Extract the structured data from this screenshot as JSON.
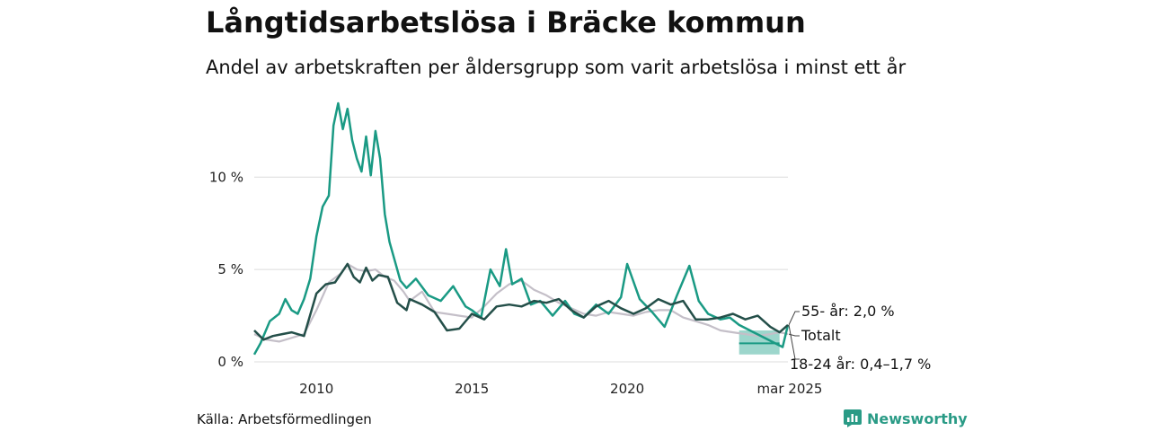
{
  "header": {
    "title": "Långtidsarbetslösa i Bräcke kommun",
    "subtitle": "Andel av arbetskraften per åldersgrupp som varit arbetslösa i minst ett år"
  },
  "footer": {
    "source": "Källa: Arbetsförmedlingen",
    "brand": "Newsworthy",
    "brand_icon": "bar-chart-logo-icon",
    "brand_color": "#2a9b86"
  },
  "chart_data": {
    "type": "line",
    "ylim": [
      0,
      14
    ],
    "y_ticks": [
      {
        "value": 0,
        "label": "0 %"
      },
      {
        "value": 5,
        "label": "5 %"
      },
      {
        "value": 10,
        "label": "10 %"
      }
    ],
    "x_ticks": [
      {
        "value": 2010,
        "label": "2010"
      },
      {
        "value": 2015,
        "label": "2015"
      },
      {
        "value": 2020,
        "label": "2020"
      },
      {
        "value": 2025.17,
        "label": "mar 2025"
      }
    ],
    "grid": true,
    "series": [
      {
        "name": "Totalt",
        "color": "#c4bfc8",
        "x": [
          2008.0,
          2008.4,
          2008.8,
          2009.2,
          2009.6,
          2010.0,
          2010.4,
          2010.8,
          2011.0,
          2011.3,
          2011.6,
          2011.9,
          2012.2,
          2012.5,
          2012.8,
          2013.0,
          2013.4,
          2013.8,
          2014.2,
          2014.6,
          2015.0,
          2015.4,
          2015.8,
          2016.2,
          2016.6,
          2017.0,
          2017.4,
          2017.8,
          2018.2,
          2018.6,
          2019.0,
          2019.4,
          2019.8,
          2020.2,
          2020.6,
          2021.0,
          2021.4,
          2021.8,
          2022.2,
          2022.6,
          2023.0,
          2023.4,
          2023.8,
          2024.2,
          2024.6,
          2024.9,
          2025.17
        ],
        "y": [
          1.5,
          1.2,
          1.1,
          1.3,
          1.5,
          2.8,
          4.3,
          4.8,
          5.3,
          5.0,
          4.9,
          5.0,
          4.6,
          4.4,
          3.8,
          3.3,
          3.8,
          2.7,
          2.6,
          2.5,
          2.4,
          3.0,
          3.7,
          4.2,
          4.4,
          3.9,
          3.6,
          3.2,
          2.9,
          2.6,
          2.5,
          2.7,
          2.6,
          2.5,
          2.7,
          2.8,
          2.8,
          2.4,
          2.2,
          2.0,
          1.7,
          1.6,
          1.5,
          1.4,
          1.5,
          1.6,
          1.5
        ]
      },
      {
        "name": "18-24 år",
        "color": "#1a9a84",
        "x": [
          2008.0,
          2008.2,
          2008.5,
          2008.8,
          2009.0,
          2009.2,
          2009.4,
          2009.6,
          2009.8,
          2010.0,
          2010.2,
          2010.4,
          2010.55,
          2010.7,
          2010.85,
          2011.0,
          2011.15,
          2011.3,
          2011.45,
          2011.6,
          2011.75,
          2011.9,
          2012.05,
          2012.2,
          2012.35,
          2012.5,
          2012.7,
          2012.9,
          2013.2,
          2013.6,
          2014.0,
          2014.4,
          2014.8,
          2015.0,
          2015.3,
          2015.6,
          2015.9,
          2016.1,
          2016.3,
          2016.6,
          2016.9,
          2017.2,
          2017.6,
          2018.0,
          2018.3,
          2018.6,
          2019.0,
          2019.4,
          2019.8,
          2020.0,
          2020.4,
          2020.8,
          2021.2,
          2021.6,
          2022.0,
          2022.3,
          2022.6,
          2023.0,
          2023.3,
          2023.6,
          2024.0,
          2024.5,
          2025.0,
          2025.17
        ],
        "y": [
          0.4,
          1.0,
          2.2,
          2.6,
          3.4,
          2.8,
          2.6,
          3.4,
          4.5,
          6.8,
          8.4,
          9.0,
          12.8,
          14.0,
          12.6,
          13.7,
          12.0,
          11.0,
          10.3,
          12.2,
          10.1,
          12.5,
          11.0,
          8.0,
          6.5,
          5.6,
          4.4,
          4.0,
          4.5,
          3.6,
          3.3,
          4.1,
          3.0,
          2.8,
          2.4,
          5.0,
          4.1,
          6.1,
          4.2,
          4.5,
          3.1,
          3.3,
          2.5,
          3.3,
          2.6,
          2.4,
          3.1,
          2.6,
          3.5,
          5.3,
          3.4,
          2.7,
          1.9,
          3.6,
          5.2,
          3.3,
          2.6,
          2.3,
          2.4,
          2.0,
          1.5,
          0.9,
          0.8,
          2.0
        ],
        "band": {
          "x": [
            2023.6,
            2024.9
          ],
          "low": 0.4,
          "high": 1.7,
          "mid": 1.0,
          "color": "#8ccfc3"
        }
      },
      {
        "name": "55- år",
        "color": "#244f49",
        "x": [
          2008.0,
          2008.3,
          2008.6,
          2008.9,
          2009.2,
          2009.6,
          2010.0,
          2010.3,
          2010.6,
          2011.0,
          2011.2,
          2011.4,
          2011.6,
          2011.8,
          2012.0,
          2012.3,
          2012.6,
          2012.9,
          2013.0,
          2013.4,
          2013.8,
          2014.2,
          2014.6,
          2015.0,
          2015.4,
          2015.8,
          2016.2,
          2016.6,
          2017.0,
          2017.4,
          2017.8,
          2018.2,
          2018.6,
          2019.0,
          2019.4,
          2019.8,
          2020.2,
          2020.6,
          2021.0,
          2021.4,
          2021.8,
          2022.2,
          2022.6,
          2023.0,
          2023.4,
          2023.8,
          2024.2,
          2024.6,
          2024.9,
          2025.17
        ],
        "y": [
          1.7,
          1.2,
          1.4,
          1.5,
          1.6,
          1.4,
          3.7,
          4.2,
          4.3,
          5.3,
          4.6,
          4.3,
          5.1,
          4.4,
          4.7,
          4.6,
          3.2,
          2.8,
          3.4,
          3.1,
          2.7,
          1.7,
          1.8,
          2.6,
          2.3,
          3.0,
          3.1,
          3.0,
          3.3,
          3.2,
          3.4,
          2.8,
          2.4,
          3.0,
          3.3,
          2.9,
          2.6,
          2.9,
          3.4,
          3.1,
          3.3,
          2.3,
          2.3,
          2.4,
          2.6,
          2.3,
          2.5,
          1.9,
          1.6,
          2.0
        ]
      }
    ],
    "end_labels": [
      {
        "series": "55- år",
        "text": "55- år: 2,0 %"
      },
      {
        "series": "Totalt",
        "text": "Totalt"
      },
      {
        "series": "18-24 år",
        "text": "18-24 år: 0,4–1,7 %"
      }
    ]
  }
}
